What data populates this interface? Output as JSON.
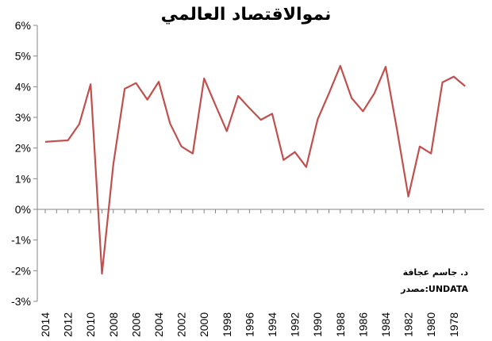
{
  "chart_data": {
    "type": "line",
    "title": "نموالاقتصاد العالمي",
    "xlabel": "",
    "ylabel": "",
    "x": [
      2014,
      2013,
      2012,
      2011,
      2010,
      2009,
      2008,
      2007,
      2006,
      2005,
      2004,
      2003,
      2002,
      2001,
      2000,
      1999,
      1998,
      1997,
      1996,
      1995,
      1994,
      1993,
      1992,
      1991,
      1990,
      1989,
      1988,
      1987,
      1986,
      1985,
      1984,
      1983,
      1982,
      1981,
      1980,
      1979,
      1978,
      1977
    ],
    "series": [
      {
        "values": [
          2.2,
          2.23,
          2.25,
          2.78,
          4.08,
          -2.1,
          1.47,
          3.93,
          4.12,
          3.58,
          4.16,
          2.8,
          2.05,
          1.82,
          4.27,
          3.4,
          2.55,
          3.7,
          3.3,
          2.92,
          3.12,
          1.61,
          1.87,
          1.38,
          2.93,
          3.78,
          4.68,
          3.63,
          3.2,
          3.78,
          4.65,
          2.6,
          0.42,
          2.05,
          1.82,
          4.14,
          4.33,
          4.02
        ]
      }
    ],
    "y_ticks": [
      "6%",
      "5%",
      "4%",
      "3%",
      "2%",
      "1%",
      "0%",
      "-1%",
      "-2%",
      "-3%"
    ],
    "y_tick_values": [
      6,
      5,
      4,
      3,
      2,
      1,
      0,
      -1,
      -2,
      -3
    ],
    "ylim": [
      -3,
      6
    ],
    "x_tick_labels": [
      "2014",
      "2012",
      "2010",
      "2008",
      "2006",
      "2004",
      "2002",
      "2000",
      "1998",
      "1996",
      "1994",
      "1992",
      "1990",
      "1988",
      "1986",
      "1984",
      "1982",
      "1980",
      "1978"
    ],
    "grid": false,
    "line_color": "#c0504d",
    "annotations": [
      "د. جاسم عجافة",
      "مصدر:UNDATA"
    ]
  }
}
